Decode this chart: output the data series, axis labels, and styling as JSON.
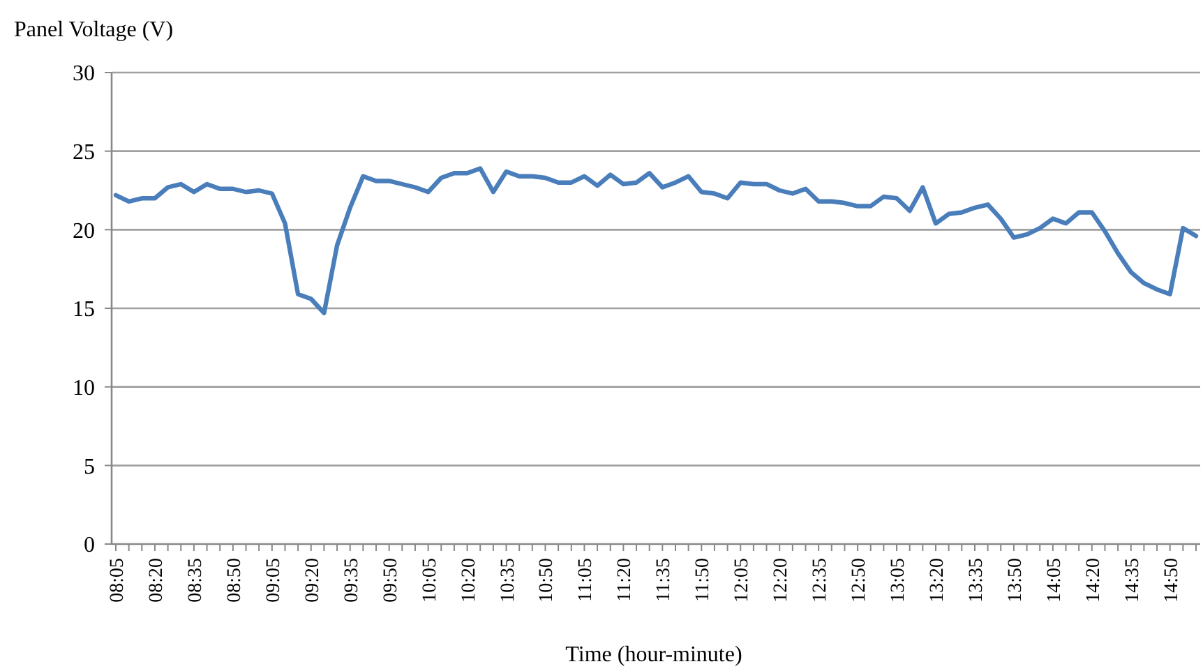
{
  "chart_data": {
    "type": "line",
    "ylabel": "Panel Voltage (V)",
    "xlabel": "Time (hour-minute)",
    "categories": [
      "08:05",
      null,
      null,
      "08:20",
      null,
      null,
      "08:35",
      null,
      null,
      "08:50",
      null,
      null,
      "09:05",
      null,
      null,
      "09:20",
      null,
      null,
      "09:35",
      null,
      null,
      "09:50",
      null,
      null,
      "10:05",
      null,
      null,
      "10:20",
      null,
      null,
      "10:35",
      null,
      null,
      "10:50",
      null,
      null,
      "11:05",
      null,
      null,
      "11:20",
      null,
      null,
      "11:35",
      null,
      null,
      "11:50",
      null,
      null,
      "12:05",
      null,
      null,
      "12:20",
      null,
      null,
      "12:35",
      null,
      null,
      "12:50",
      null,
      null,
      "13:05",
      null,
      null,
      "13:20",
      null,
      null,
      "13:35",
      null,
      null,
      "13:50",
      null,
      null,
      "14:05",
      null,
      null,
      "14:20",
      null,
      null,
      "14:35",
      null,
      null,
      "14:50",
      null,
      null
    ],
    "series": [
      {
        "color": "#4a7ebb",
        "values": [
          22.2,
          21.8,
          22.0,
          22.0,
          22.7,
          22.9,
          22.4,
          22.9,
          22.6,
          22.6,
          22.4,
          22.5,
          22.3,
          20.4,
          15.9,
          15.6,
          14.7,
          19.0,
          21.4,
          23.4,
          23.1,
          23.1,
          22.9,
          22.7,
          22.4,
          23.3,
          23.6,
          23.6,
          23.9,
          22.4,
          23.7,
          23.4,
          23.4,
          23.3,
          23.0,
          23.0,
          23.4,
          22.8,
          23.5,
          22.9,
          23.0,
          23.6,
          22.7,
          23.0,
          23.4,
          22.4,
          22.3,
          22.0,
          23.0,
          22.9,
          22.9,
          22.5,
          22.3,
          22.6,
          21.8,
          21.8,
          21.7,
          21.5,
          21.5,
          22.1,
          22.0,
          21.2,
          22.7,
          20.4,
          21.0,
          21.1,
          21.4,
          21.6,
          20.7,
          19.5,
          19.7,
          20.1,
          20.7,
          20.4,
          21.1,
          21.1,
          19.9,
          18.5,
          17.3,
          16.6,
          16.2,
          15.9,
          20.1,
          19.6
        ]
      }
    ],
    "ylim": [
      0,
      30
    ],
    "yticks": [
      0,
      5,
      10,
      15,
      20,
      25,
      30
    ],
    "grid": "y",
    "marker": "none",
    "line_style": "solid"
  }
}
